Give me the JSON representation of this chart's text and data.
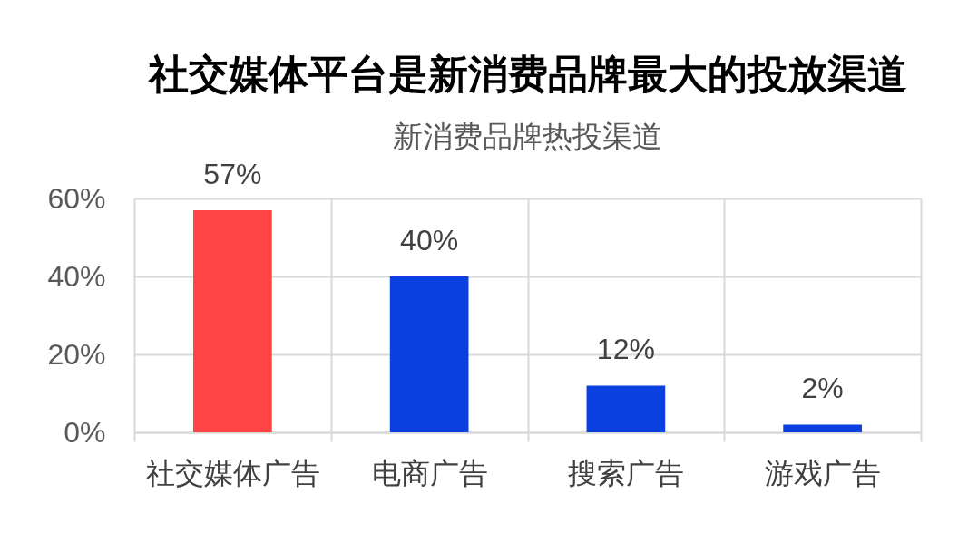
{
  "chart_data": {
    "type": "bar",
    "title": "社交媒体平台是新消费品牌最大的投放渠道",
    "subtitle": "新消费品牌热投渠道",
    "categories": [
      "社交媒体广告",
      "电商广告",
      "搜索广告",
      "游戏广告"
    ],
    "values": [
      57,
      40,
      12,
      2
    ],
    "colors": [
      "#ff4444",
      "#0a3fe0",
      "#0a3fe0",
      "#0a3fe0"
    ],
    "value_labels": [
      "57%",
      "40%",
      "12%",
      "2%"
    ],
    "ylim": [
      0,
      60
    ],
    "yticks": [
      {
        "value": 0,
        "label": "0%"
      },
      {
        "value": 20,
        "label": "20%"
      },
      {
        "value": 40,
        "label": "40%"
      },
      {
        "value": 60,
        "label": "60%"
      }
    ],
    "grid": true
  }
}
